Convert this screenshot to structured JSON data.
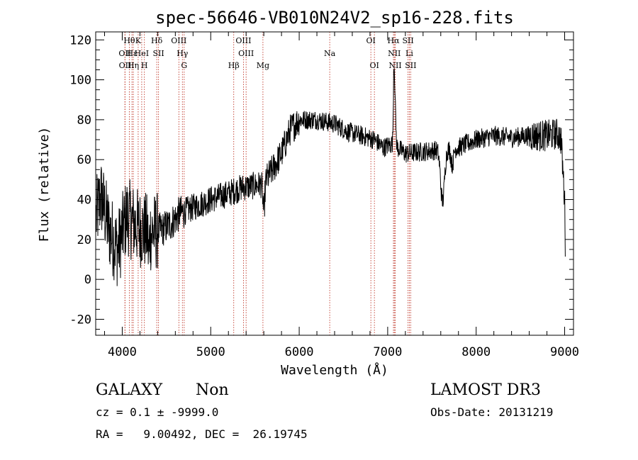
{
  "chart_data": {
    "type": "line",
    "title": "spec-56646-VB010N24V2_sp16-228.fits",
    "xlabel": "Wavelength (Å)",
    "ylabel": "Flux (relative)",
    "xlim": [
      3700,
      9100
    ],
    "ylim": [
      -28,
      124
    ],
    "xticks": [
      4000,
      5000,
      6000,
      7000,
      8000,
      9000
    ],
    "yticks": [
      -20,
      0,
      20,
      40,
      60,
      80,
      100,
      120
    ],
    "grid": false,
    "anchors": [
      [
        3700,
        30
      ],
      [
        3760,
        42
      ],
      [
        3850,
        25
      ],
      [
        3950,
        15
      ],
      [
        4050,
        32
      ],
      [
        4150,
        27
      ],
      [
        4300,
        23
      ],
      [
        4450,
        25
      ],
      [
        4550,
        28
      ],
      [
        4650,
        33
      ],
      [
        4750,
        35
      ],
      [
        4850,
        37
      ],
      [
        5000,
        40
      ],
      [
        5200,
        43
      ],
      [
        5350,
        46
      ],
      [
        5500,
        47
      ],
      [
        5600,
        48
      ],
      [
        5700,
        55
      ],
      [
        5800,
        63
      ],
      [
        5900,
        75
      ],
      [
        6000,
        80
      ],
      [
        6200,
        80
      ],
      [
        6400,
        78
      ],
      [
        6550,
        74
      ],
      [
        6700,
        72
      ],
      [
        6850,
        70
      ],
      [
        6950,
        66
      ],
      [
        7050,
        68
      ],
      [
        7200,
        63
      ],
      [
        7400,
        64
      ],
      [
        7600,
        65
      ],
      [
        7800,
        66
      ],
      [
        8000,
        70
      ],
      [
        8200,
        72
      ],
      [
        8400,
        71
      ],
      [
        8600,
        72
      ],
      [
        8800,
        72
      ],
      [
        8920,
        73
      ],
      [
        8960,
        70
      ],
      [
        8980,
        55
      ],
      [
        9000,
        40
      ],
      [
        9010,
        12
      ]
    ],
    "features": [
      {
        "center": 7070,
        "width": 6,
        "depth": 38
      },
      {
        "center": 7080,
        "width": 5,
        "depth": 20
      },
      {
        "center": 7090,
        "width": 6,
        "depth": 12
      },
      {
        "center": 7620,
        "width": 22,
        "depth": -26
      },
      {
        "center": 7730,
        "width": 15,
        "depth": -8
      },
      {
        "center": 5600,
        "width": 10,
        "depth": -14
      },
      {
        "center": 4300,
        "width": 6,
        "depth": -12
      }
    ],
    "line_markers": [
      {
        "wavelength": 4030,
        "label": "OII",
        "row": 1
      },
      {
        "wavelength": 4032,
        "label": "OII",
        "row": 2
      },
      {
        "wavelength": 4080,
        "label": "Hθ",
        "row": 0
      },
      {
        "wavelength": 4110,
        "label": "Hε",
        "row": 1
      },
      {
        "wavelength": 4125,
        "label": "Hη",
        "row": 2
      },
      {
        "wavelength": 4180,
        "label": "K",
        "row": 0
      },
      {
        "wavelength": 4220,
        "label": "HeI",
        "row": 1
      },
      {
        "wavelength": 4250,
        "label": "H",
        "row": 2
      },
      {
        "wavelength": 4390,
        "label": "Hδ",
        "row": 0
      },
      {
        "wavelength": 4410,
        "label": "SII",
        "row": 1
      },
      {
        "wavelength": 4640,
        "label": "OIII",
        "row": 0
      },
      {
        "wavelength": 4680,
        "label": "Hγ",
        "row": 1
      },
      {
        "wavelength": 4700,
        "label": "G",
        "row": 2
      },
      {
        "wavelength": 5260,
        "label": "Hβ",
        "row": 2
      },
      {
        "wavelength": 5370,
        "label": "OIII",
        "row": 0
      },
      {
        "wavelength": 5400,
        "label": "OIII",
        "row": 1
      },
      {
        "wavelength": 5590,
        "label": "Mg",
        "row": 2
      },
      {
        "wavelength": 6345,
        "label": "Na",
        "row": 1
      },
      {
        "wavelength": 6810,
        "label": "OI",
        "row": 0
      },
      {
        "wavelength": 6850,
        "label": "OI",
        "row": 2
      },
      {
        "wavelength": 7065,
        "label": "Hα",
        "row": 0
      },
      {
        "wavelength": 7075,
        "label": "NII",
        "row": 1
      },
      {
        "wavelength": 7085,
        "label": "NII",
        "row": 2
      },
      {
        "wavelength": 7230,
        "label": "SII",
        "row": 0
      },
      {
        "wavelength": 7245,
        "label": "Li",
        "row": 1
      },
      {
        "wavelength": 7260,
        "label": "SII",
        "row": 2
      }
    ]
  },
  "info": {
    "class": "GALAXY",
    "subclass": "Non",
    "survey": "LAMOST DR3",
    "cz": "cz = 0.1 ± -9999.0",
    "obs_date": "Obs-Date: 20131219",
    "coords": "RA =   9.00492, DEC =  26.19745"
  }
}
